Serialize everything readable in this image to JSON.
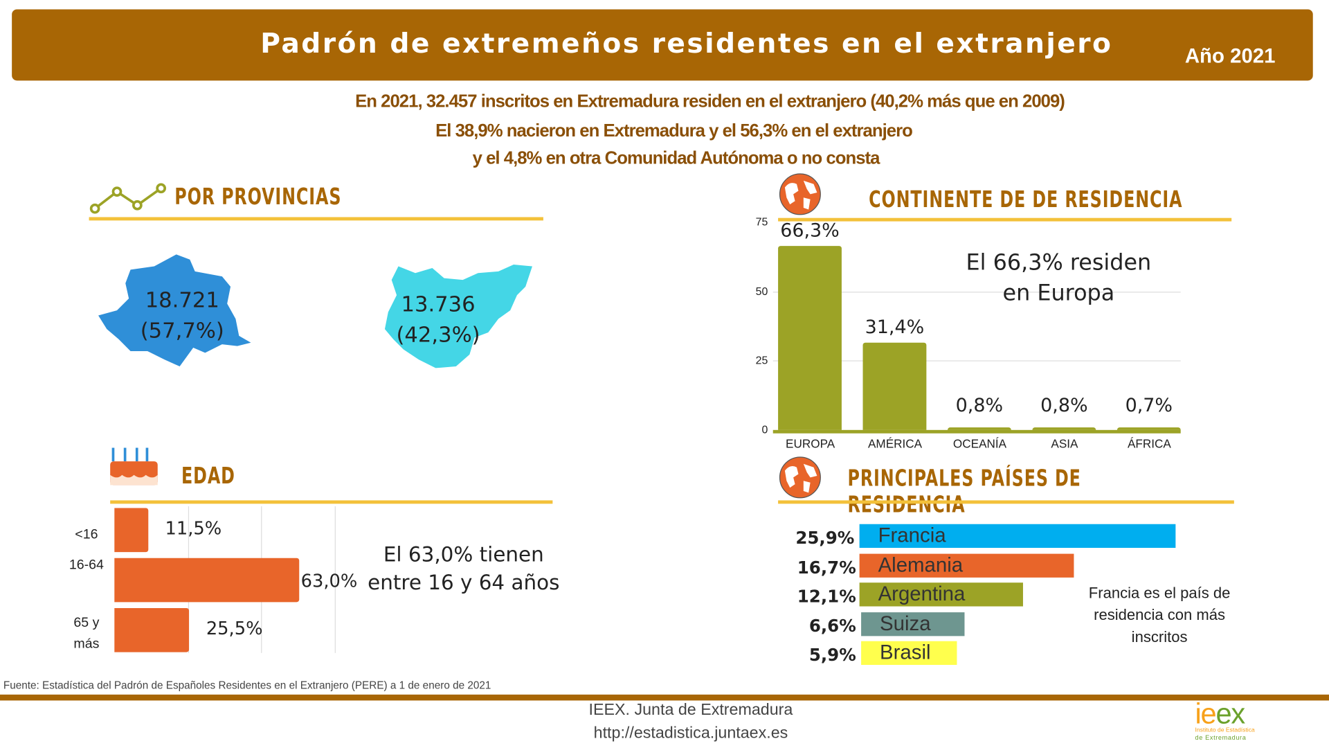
{
  "header": {
    "title": "Padrón de extremeños residentes en el extranjero",
    "year": "Año 2021"
  },
  "summary": [
    "En 2021, 32.457 inscritos en Extremadura residen en el extranjero  (40,2% más que en 2009)",
    "El 38,9% nacieron en Extremadura y el 56,3% en el extranjero",
    "y el 4,8% en otra Comunidad Autónoma o no consta"
  ],
  "provincias": {
    "title": "POR PROVINCIAS",
    "caceres": {
      "value": "18.721",
      "pct": "(57,7%)",
      "color": "#2f8fd8"
    },
    "badajoz": {
      "value": "13.736",
      "pct": "(42,3%)",
      "color": "#44d6e6"
    }
  },
  "continente": {
    "title": "CONTINENTE DE DE RESIDENCIA",
    "note1": "El 66,3% residen",
    "note2": "en Europa",
    "chart_data": {
      "type": "bar",
      "categories": [
        "EUROPA",
        "AMÉRICA",
        "OCEANÍA",
        "ASIA",
        "ÁFRICA"
      ],
      "values": [
        66.3,
        31.4,
        0.8,
        0.8,
        0.7
      ],
      "labels": [
        "66,3%",
        "31,4%",
        "0,8%",
        "0,8%",
        "0,7%"
      ],
      "ylim": [
        0,
        75
      ],
      "yticks": [
        "0",
        "25",
        "50",
        "75"
      ],
      "grid": true,
      "color": "#9ca326"
    }
  },
  "edad": {
    "title": "EDAD",
    "note1": "El 63,0% tienen",
    "note2": "entre 16 y 64 años",
    "chart_data": {
      "type": "bar",
      "orientation": "horizontal",
      "categories": [
        "<16",
        "16-64",
        "65 y más"
      ],
      "values": [
        11.5,
        63.0,
        25.5
      ],
      "labels": [
        "11,5%",
        "63,0%",
        "25,5%"
      ],
      "color": "#e8652a",
      "grid": true
    }
  },
  "paises": {
    "title": "PRINCIPALES PAÍSES DE RESIDENCIA",
    "note": [
      "Francia es el país de",
      "residencia con más",
      "inscritos"
    ],
    "chart_data": {
      "type": "bar",
      "orientation": "horizontal",
      "categories": [
        "Francia",
        "Alemania",
        "Argentina",
        "Suiza",
        "Brasil"
      ],
      "values": [
        25.9,
        16.7,
        12.1,
        6.6,
        5.9
      ],
      "labels": [
        "25,9%",
        "16,7%",
        "12,1%",
        "6,6%",
        "5,9%"
      ],
      "colors": [
        "#00aeef",
        "#e8652a",
        "#9ca326",
        "#6e9690",
        "#ffff4d"
      ]
    }
  },
  "source": "Fuente: Estadística del Padrón de Españoles Residentes en el Extranjero (PERE) a 1 de enero de 2021",
  "footer": {
    "org": "IEEX. Junta de Extremadura",
    "url": "http://estadistica.juntaex.es",
    "logo": "ieex",
    "logo_sub1": "Instituto de Estadística",
    "logo_sub2": "de Extremadura"
  },
  "colors": {
    "brand": "#a86605",
    "accent_line": "#f3c13a",
    "olive": "#9ca326",
    "orange": "#e8652a"
  }
}
